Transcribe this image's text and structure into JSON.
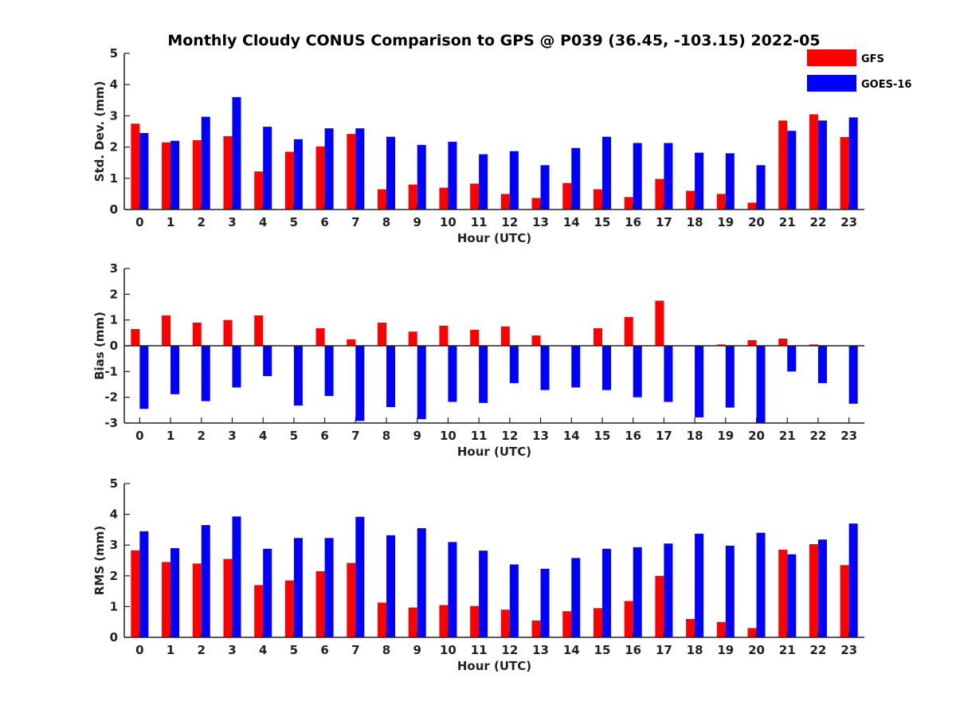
{
  "figure": {
    "title": "Monthly Cloudy CONUS Comparison to GPS @ P039 (36.45, -103.15) 2022-05",
    "legend": [
      {
        "name": "GFS",
        "color": "#ff0000"
      },
      {
        "name": "GOES-16",
        "color": "#0000ff"
      }
    ]
  },
  "chart_data": [
    {
      "type": "bar",
      "categories": [
        "0",
        "1",
        "2",
        "3",
        "4",
        "5",
        "6",
        "7",
        "8",
        "9",
        "10",
        "11",
        "12",
        "13",
        "14",
        "15",
        "16",
        "17",
        "18",
        "19",
        "20",
        "21",
        "22",
        "23"
      ],
      "xlabel": "Hour (UTC)",
      "ylabel": "Std. Dev. (mm)",
      "ylim": [
        0,
        5
      ],
      "yticks": [
        "0",
        "1",
        "2",
        "3",
        "4",
        "5"
      ],
      "legend_position": "top-right",
      "series": [
        {
          "name": "GFS",
          "color": "#ff0000",
          "values": [
            2.75,
            2.15,
            2.22,
            2.35,
            1.22,
            1.85,
            2.02,
            2.42,
            0.65,
            0.8,
            0.7,
            0.83,
            0.5,
            0.37,
            0.85,
            0.65,
            0.4,
            0.98,
            0.6,
            0.5,
            0.22,
            2.85,
            3.05,
            2.32
          ]
        },
        {
          "name": "GOES-16",
          "color": "#0000ff",
          "values": [
            2.45,
            2.2,
            2.97,
            3.6,
            2.65,
            2.25,
            2.6,
            2.6,
            2.33,
            2.07,
            2.17,
            1.77,
            1.87,
            1.42,
            1.97,
            2.33,
            2.13,
            2.13,
            1.82,
            1.8,
            1.42,
            2.52,
            2.85,
            2.95
          ]
        }
      ]
    },
    {
      "type": "bar",
      "categories": [
        "0",
        "1",
        "2",
        "3",
        "4",
        "5",
        "6",
        "7",
        "8",
        "9",
        "10",
        "11",
        "12",
        "13",
        "14",
        "15",
        "16",
        "17",
        "18",
        "19",
        "20",
        "21",
        "22",
        "23"
      ],
      "xlabel": "Hour (UTC)",
      "ylabel": "Bias (mm)",
      "ylim": [
        -3,
        3
      ],
      "yticks": [
        "-3",
        "-2",
        "-1",
        "0",
        "1",
        "2",
        "3"
      ],
      "series": [
        {
          "name": "GFS",
          "color": "#ff0000",
          "values": [
            0.65,
            1.18,
            0.9,
            1.0,
            1.18,
            0.0,
            0.68,
            0.25,
            0.9,
            0.55,
            0.78,
            0.62,
            0.75,
            0.4,
            0.0,
            0.68,
            1.12,
            1.75,
            0.0,
            0.05,
            0.22,
            0.28,
            0.05,
            0.0
          ]
        },
        {
          "name": "GOES-16",
          "color": "#0000ff",
          "values": [
            -2.45,
            -1.88,
            -2.15,
            -1.62,
            -1.18,
            -2.32,
            -1.95,
            -2.92,
            -2.38,
            -2.85,
            -2.18,
            -2.22,
            -1.45,
            -1.72,
            -1.62,
            -1.72,
            -2.0,
            -2.18,
            -2.78,
            -2.4,
            -3.0,
            -1.0,
            -1.45,
            -2.25
          ]
        }
      ]
    },
    {
      "type": "bar",
      "categories": [
        "0",
        "1",
        "2",
        "3",
        "4",
        "5",
        "6",
        "7",
        "8",
        "9",
        "10",
        "11",
        "12",
        "13",
        "14",
        "15",
        "16",
        "17",
        "18",
        "19",
        "20",
        "21",
        "22",
        "23"
      ],
      "xlabel": "Hour (UTC)",
      "ylabel": "RMS (mm)",
      "ylim": [
        0,
        5
      ],
      "yticks": [
        "0",
        "1",
        "2",
        "3",
        "4",
        "5"
      ],
      "series": [
        {
          "name": "GFS",
          "color": "#ff0000",
          "values": [
            2.83,
            2.45,
            2.4,
            2.55,
            1.7,
            1.85,
            2.15,
            2.42,
            1.13,
            0.97,
            1.05,
            1.02,
            0.9,
            0.55,
            0.85,
            0.95,
            1.18,
            2.0,
            0.6,
            0.5,
            0.3,
            2.85,
            3.03,
            2.35
          ]
        },
        {
          "name": "GOES-16",
          "color": "#0000ff",
          "values": [
            3.45,
            2.9,
            3.65,
            3.93,
            2.88,
            3.23,
            3.23,
            3.92,
            3.32,
            3.55,
            3.1,
            2.82,
            2.37,
            2.23,
            2.58,
            2.88,
            2.93,
            3.05,
            3.37,
            2.98,
            3.4,
            2.7,
            3.18,
            3.7
          ]
        }
      ]
    }
  ]
}
